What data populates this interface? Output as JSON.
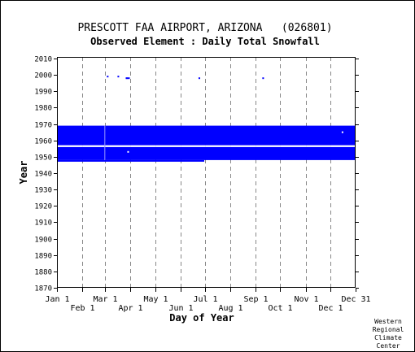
{
  "chart_data": {
    "type": "scatter",
    "title": "PRESCOTT FAA AIRPORT, ARIZONA   (026801)",
    "subtitle": "Observed Element : Daily Total Snowfall",
    "xlabel": "Day of Year",
    "ylabel": "Year",
    "ylim": [
      1870,
      2011
    ],
    "yticks": [
      1870,
      1880,
      1890,
      1900,
      1910,
      1920,
      1930,
      1940,
      1950,
      1960,
      1970,
      1980,
      1990,
      2000,
      2010
    ],
    "xlim": [
      1,
      366
    ],
    "x_ticks_upper": [
      {
        "label": "Jan 1",
        "day": 1
      },
      {
        "label": "Mar 1",
        "day": 60
      },
      {
        "label": "May 1",
        "day": 121
      },
      {
        "label": "Jul 1",
        "day": 182
      },
      {
        "label": "Sep 1",
        "day": 244
      },
      {
        "label": "Nov 1",
        "day": 305
      },
      {
        "label": "Dec 31",
        "day": 366
      }
    ],
    "x_ticks_lower": [
      {
        "label": "Feb 1",
        "day": 32
      },
      {
        "label": "Apr 1",
        "day": 91
      },
      {
        "label": "Jun 1",
        "day": 152
      },
      {
        "label": "Aug 1",
        "day": 213
      },
      {
        "label": "Oct 1",
        "day": 274
      },
      {
        "label": "Dec 1",
        "day": 335
      }
    ],
    "gridlines": "vertical dashed at month starts",
    "series_color": "#0000ff",
    "data_bands": [
      {
        "day_start": 1,
        "day_end": 366,
        "year_start": 1957,
        "year_end": 1969
      },
      {
        "day_start": 1,
        "day_end": 366,
        "year_start": 1948,
        "year_end": 1956
      },
      {
        "day_start": 1,
        "day_end": 181,
        "year_start": 1947,
        "year_end": 1948
      }
    ],
    "band_gaps": [
      {
        "day_start": 1,
        "day_end": 366,
        "year_start": 1956,
        "year_end": 1957
      },
      {
        "day_start": 59,
        "day_end": 60,
        "year_start": 1948,
        "year_end": 1969
      }
    ],
    "points": [
      {
        "day": 63,
        "year": 1999
      },
      {
        "day": 76,
        "year": 1999
      },
      {
        "day": 86,
        "year": 1998
      },
      {
        "day": 87,
        "year": 1998
      },
      {
        "day": 89,
        "year": 1998
      },
      {
        "day": 175,
        "year": 1998
      },
      {
        "day": 253,
        "year": 1998
      },
      {
        "day": 88,
        "year": 1953
      },
      {
        "day": 350,
        "year": 1965
      }
    ],
    "credit": [
      "Western",
      "Regional",
      "Climate",
      "Center"
    ]
  }
}
